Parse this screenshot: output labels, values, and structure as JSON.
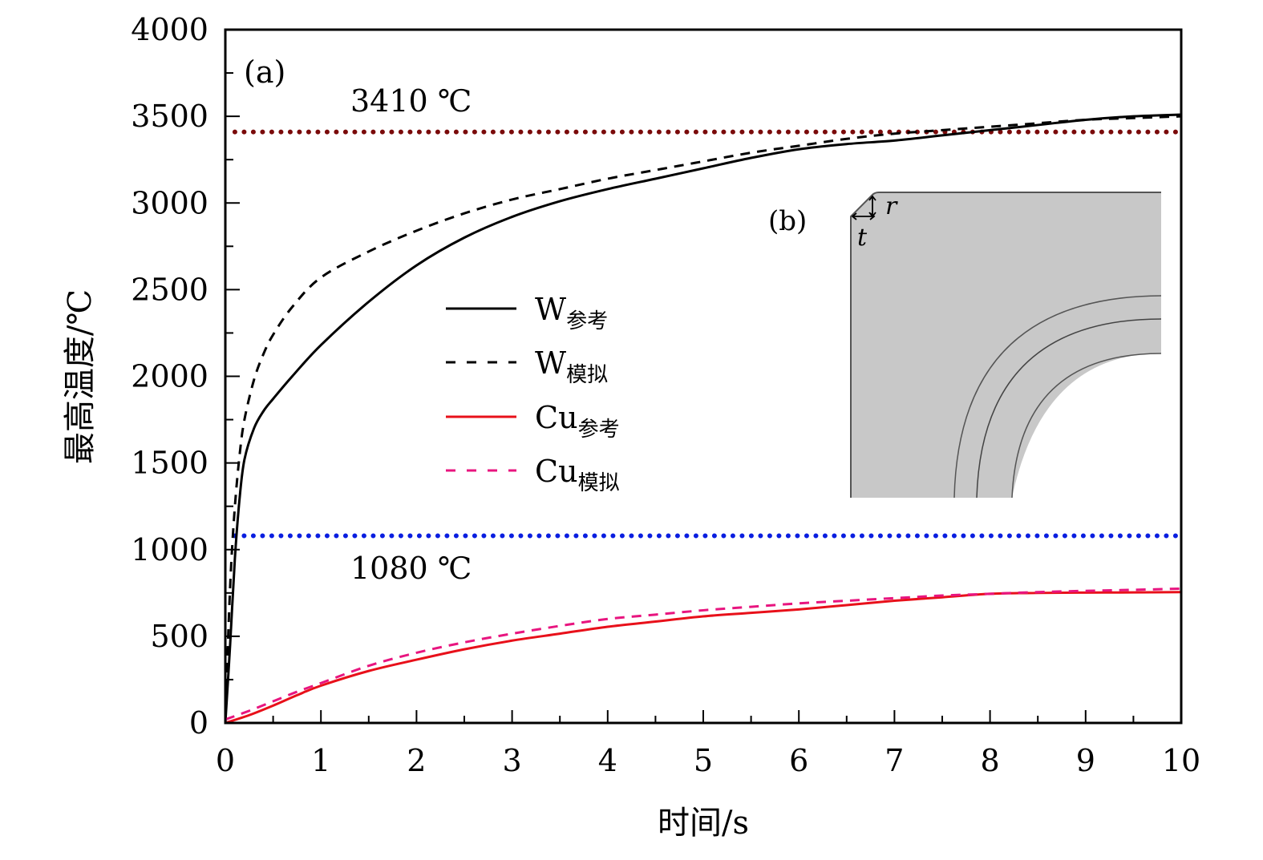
{
  "chart_data": {
    "type": "line",
    "title": "",
    "panel_label": "(a)",
    "xlabel": "时间/s",
    "ylabel": "最高温度/℃",
    "xlim": [
      0,
      10
    ],
    "ylim": [
      0,
      4000
    ],
    "xticks": [
      0,
      1,
      2,
      3,
      4,
      5,
      6,
      7,
      8,
      9,
      10
    ],
    "xtick_labels": [
      "0",
      "1",
      "2",
      "3",
      "4",
      "5",
      "6",
      "7",
      "8",
      "9",
      "10"
    ],
    "x_minor_step": 0.5,
    "yticks": [
      0,
      500,
      1000,
      1500,
      2000,
      2500,
      3000,
      3500,
      4000
    ],
    "ytick_labels": [
      "0",
      "500",
      "1000",
      "1500",
      "2000",
      "2500",
      "3000",
      "3500",
      "4000"
    ],
    "y_minor_step": 250,
    "grid": false,
    "legend_position": "center-left",
    "series": [
      {
        "name": "W参考",
        "main": "W",
        "sub": "参考",
        "color": "#000000",
        "style": "solid",
        "x": [
          0,
          0.05,
          0.1,
          0.15,
          0.2,
          0.3,
          0.4,
          0.5,
          0.7,
          1.0,
          1.5,
          2.0,
          2.5,
          3.0,
          3.5,
          4.0,
          4.5,
          5.0,
          5.5,
          6.0,
          6.5,
          7.0,
          7.5,
          8.0,
          8.5,
          9.0,
          9.5,
          10.0
        ],
        "y": [
          0,
          450,
          950,
          1300,
          1520,
          1700,
          1800,
          1870,
          2000,
          2180,
          2430,
          2640,
          2800,
          2920,
          3010,
          3080,
          3140,
          3200,
          3260,
          3310,
          3340,
          3360,
          3390,
          3420,
          3450,
          3480,
          3500,
          3510
        ]
      },
      {
        "name": "W模拟",
        "main": "W",
        "sub": "模拟",
        "color": "#000000",
        "style": "dashed",
        "x": [
          0,
          0.03,
          0.06,
          0.1,
          0.15,
          0.2,
          0.3,
          0.4,
          0.5,
          0.7,
          1.0,
          1.5,
          2.0,
          2.5,
          3.0,
          3.5,
          4.0,
          4.5,
          5.0,
          5.5,
          6.0,
          6.5,
          7.0,
          7.5,
          8.0,
          8.5,
          9.0,
          9.5,
          10.0
        ],
        "y": [
          0,
          500,
          900,
          1250,
          1550,
          1750,
          1980,
          2130,
          2240,
          2400,
          2570,
          2720,
          2840,
          2940,
          3020,
          3080,
          3140,
          3190,
          3240,
          3290,
          3330,
          3370,
          3400,
          3420,
          3440,
          3460,
          3480,
          3490,
          3500
        ]
      },
      {
        "name": "Cu参考",
        "main": "Cu",
        "sub": "参考",
        "color": "#e8101a",
        "style": "solid",
        "x": [
          0,
          0.25,
          0.5,
          0.75,
          1.0,
          1.5,
          2.0,
          2.5,
          3.0,
          3.5,
          4.0,
          4.5,
          5.0,
          5.5,
          6.0,
          6.5,
          7.0,
          7.5,
          8.0,
          8.5,
          9.0,
          9.5,
          10.0
        ],
        "y": [
          0,
          45,
          100,
          160,
          215,
          300,
          365,
          425,
          475,
          515,
          555,
          585,
          615,
          635,
          655,
          680,
          705,
          725,
          745,
          750,
          752,
          753,
          755
        ]
      },
      {
        "name": "Cu模拟",
        "main": "Cu",
        "sub": "模拟",
        "color": "#e8157f",
        "style": "dashed",
        "x": [
          0,
          0.25,
          0.5,
          0.75,
          1.0,
          1.5,
          2.0,
          2.5,
          3.0,
          3.5,
          4.0,
          4.5,
          5.0,
          5.5,
          6.0,
          6.5,
          7.0,
          7.5,
          8.0,
          8.5,
          9.0,
          9.5,
          10.0
        ],
        "y": [
          20,
          70,
          125,
          180,
          230,
          330,
          405,
          465,
          515,
          560,
          600,
          625,
          650,
          670,
          690,
          705,
          720,
          735,
          745,
          755,
          762,
          768,
          775
        ]
      }
    ],
    "reference_lines": [
      {
        "name": "W-melting-point",
        "value": 3410,
        "label": "3410 ℃",
        "color": "#7a0a0a",
        "style": "dotted",
        "x_start": 0.1
      },
      {
        "name": "Cu-melting-point",
        "value": 1080,
        "label": "1080 ℃",
        "color": "#0a1ee0",
        "style": "dotted",
        "x_start": 0.1
      }
    ],
    "inset": {
      "panel_label": "(b)",
      "description": "Cross-section of a corner with chamfer and concentric arcs",
      "dimension_labels": [
        "r",
        "t"
      ],
      "fill_color": "#c8c8c8"
    }
  }
}
